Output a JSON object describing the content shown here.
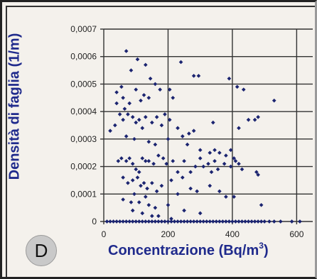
{
  "panel_letter": "D",
  "chart_data": {
    "type": "scatter",
    "xlabel_main": "Concentrazione (Bq/m",
    "xlabel_sup": "3",
    "xlabel_end": ")",
    "ylabel": "Densità di faglia (1/m)",
    "xlim": [
      0,
      650
    ],
    "ylim": [
      0,
      0.0007
    ],
    "x_ticks": [
      "0",
      "200",
      "400",
      "600"
    ],
    "y_ticks": [
      "0",
      "0,0001",
      "0,0002",
      "0,0003",
      "0,0004",
      "0,0005",
      "0,0006",
      "0,0007"
    ],
    "grid": true,
    "marker_color": "#1b2470",
    "points": [
      [
        70,
        0.00062
      ],
      [
        85,
        0.00055
      ],
      [
        105,
        0.00059
      ],
      [
        130,
        0.00057
      ],
      [
        145,
        0.00052
      ],
      [
        160,
        0.0005
      ],
      [
        240,
        0.00058
      ],
      [
        280,
        0.00053
      ],
      [
        295,
        0.00053
      ],
      [
        390,
        0.00052
      ],
      [
        415,
        0.00049
      ],
      [
        435,
        0.00048
      ],
      [
        530,
        0.00044
      ],
      [
        40,
        0.00047
      ],
      [
        55,
        0.00049
      ],
      [
        60,
        0.00045
      ],
      [
        80,
        0.00043
      ],
      [
        100,
        0.00048
      ],
      [
        115,
        0.00044
      ],
      [
        125,
        0.00046
      ],
      [
        140,
        0.00045
      ],
      [
        175,
        0.00048
      ],
      [
        205,
        0.00048
      ],
      [
        215,
        0.00045
      ],
      [
        40,
        0.00043
      ],
      [
        65,
        0.00041
      ],
      [
        20,
        0.00033
      ],
      [
        35,
        0.00035
      ],
      [
        50,
        0.00039
      ],
      [
        60,
        0.00037
      ],
      [
        75,
        0.00039
      ],
      [
        90,
        0.00038
      ],
      [
        100,
        0.00036
      ],
      [
        110,
        0.00037
      ],
      [
        120,
        0.00034
      ],
      [
        130,
        0.00038
      ],
      [
        150,
        0.00036
      ],
      [
        165,
        0.00038
      ],
      [
        180,
        0.00035
      ],
      [
        190,
        0.00039
      ],
      [
        205,
        0.00037
      ],
      [
        230,
        0.00034
      ],
      [
        245,
        0.00031
      ],
      [
        265,
        0.00032
      ],
      [
        280,
        0.00033
      ],
      [
        340,
        0.00036
      ],
      [
        420,
        0.00034
      ],
      [
        450,
        0.00037
      ],
      [
        470,
        0.00037
      ],
      [
        480,
        0.00038
      ],
      [
        70,
        0.00031
      ],
      [
        95,
        0.0003
      ],
      [
        140,
        0.00029
      ],
      [
        160,
        0.00028
      ],
      [
        200,
        0.0003
      ],
      [
        260,
        0.00028
      ],
      [
        300,
        0.00026
      ],
      [
        330,
        0.00025
      ],
      [
        345,
        0.00026
      ],
      [
        360,
        0.00025
      ],
      [
        380,
        0.00024
      ],
      [
        395,
        0.00026
      ],
      [
        405,
        0.00023
      ],
      [
        45,
        0.00022
      ],
      [
        55,
        0.00023
      ],
      [
        70,
        0.00022
      ],
      [
        80,
        0.00023
      ],
      [
        90,
        0.00021
      ],
      [
        100,
        0.00019
      ],
      [
        110,
        0.00018
      ],
      [
        120,
        0.00023
      ],
      [
        130,
        0.00022
      ],
      [
        140,
        0.00022
      ],
      [
        155,
        0.00021
      ],
      [
        170,
        0.00024
      ],
      [
        185,
        0.00023
      ],
      [
        195,
        0.00021
      ],
      [
        215,
        0.00022
      ],
      [
        230,
        0.00018
      ],
      [
        250,
        0.00022
      ],
      [
        270,
        0.00018
      ],
      [
        285,
        0.0002
      ],
      [
        300,
        0.00023
      ],
      [
        310,
        0.0002
      ],
      [
        325,
        0.00021
      ],
      [
        335,
        0.00018
      ],
      [
        345,
        0.00022
      ],
      [
        355,
        0.00019
      ],
      [
        375,
        0.00021
      ],
      [
        395,
        0.0002
      ],
      [
        410,
        0.00022
      ],
      [
        420,
        0.00021
      ],
      [
        430,
        0.00019
      ],
      [
        475,
        0.00018
      ],
      [
        480,
        0.00017
      ],
      [
        60,
        0.00016
      ],
      [
        75,
        0.00014
      ],
      [
        90,
        0.00015
      ],
      [
        105,
        0.00016
      ],
      [
        115,
        0.00013
      ],
      [
        125,
        0.00014
      ],
      [
        135,
        0.00012
      ],
      [
        150,
        0.00014
      ],
      [
        165,
        0.00011
      ],
      [
        180,
        0.00013
      ],
      [
        210,
        0.00015
      ],
      [
        245,
        0.00016
      ],
      [
        270,
        0.00012
      ],
      [
        290,
        0.00011
      ],
      [
        330,
        0.00013
      ],
      [
        360,
        0.00011
      ],
      [
        230,
        0.0001
      ],
      [
        95,
        0.0001
      ],
      [
        130,
        9e-05
      ],
      [
        60,
        8e-05
      ],
      [
        85,
        7e-05
      ],
      [
        110,
        7e-05
      ],
      [
        140,
        6e-05
      ],
      [
        160,
        5e-05
      ],
      [
        200,
        6e-05
      ],
      [
        250,
        4e-05
      ],
      [
        300,
        3e-05
      ],
      [
        380,
        9e-05
      ],
      [
        405,
        9e-05
      ],
      [
        90,
        4e-05
      ],
      [
        120,
        3e-05
      ],
      [
        150,
        2e-05
      ],
      [
        170,
        2e-05
      ],
      [
        210,
        1e-05
      ],
      [
        490,
        6e-05
      ],
      [
        10,
        0
      ],
      [
        20,
        0
      ],
      [
        30,
        0
      ],
      [
        40,
        0
      ],
      [
        50,
        0
      ],
      [
        60,
        0
      ],
      [
        70,
        0
      ],
      [
        80,
        0
      ],
      [
        90,
        0
      ],
      [
        100,
        0
      ],
      [
        110,
        0
      ],
      [
        120,
        0
      ],
      [
        130,
        0
      ],
      [
        140,
        0
      ],
      [
        150,
        0
      ],
      [
        160,
        0
      ],
      [
        170,
        0
      ],
      [
        180,
        0
      ],
      [
        190,
        0
      ],
      [
        200,
        0
      ],
      [
        210,
        0
      ],
      [
        220,
        0
      ],
      [
        230,
        0
      ],
      [
        240,
        0
      ],
      [
        250,
        0
      ],
      [
        260,
        0
      ],
      [
        270,
        0
      ],
      [
        280,
        0
      ],
      [
        290,
        0
      ],
      [
        300,
        0
      ],
      [
        310,
        0
      ],
      [
        320,
        0
      ],
      [
        330,
        0
      ],
      [
        340,
        0
      ],
      [
        350,
        0
      ],
      [
        360,
        0
      ],
      [
        370,
        0
      ],
      [
        380,
        0
      ],
      [
        390,
        0
      ],
      [
        400,
        0
      ],
      [
        410,
        0
      ],
      [
        420,
        0
      ],
      [
        430,
        0
      ],
      [
        440,
        0
      ],
      [
        450,
        0
      ],
      [
        460,
        0
      ],
      [
        470,
        0
      ],
      [
        480,
        0
      ],
      [
        490,
        0
      ],
      [
        500,
        0
      ],
      [
        515,
        0
      ],
      [
        530,
        0
      ],
      [
        550,
        0
      ],
      [
        585,
        0
      ],
      [
        610,
        0
      ]
    ]
  }
}
